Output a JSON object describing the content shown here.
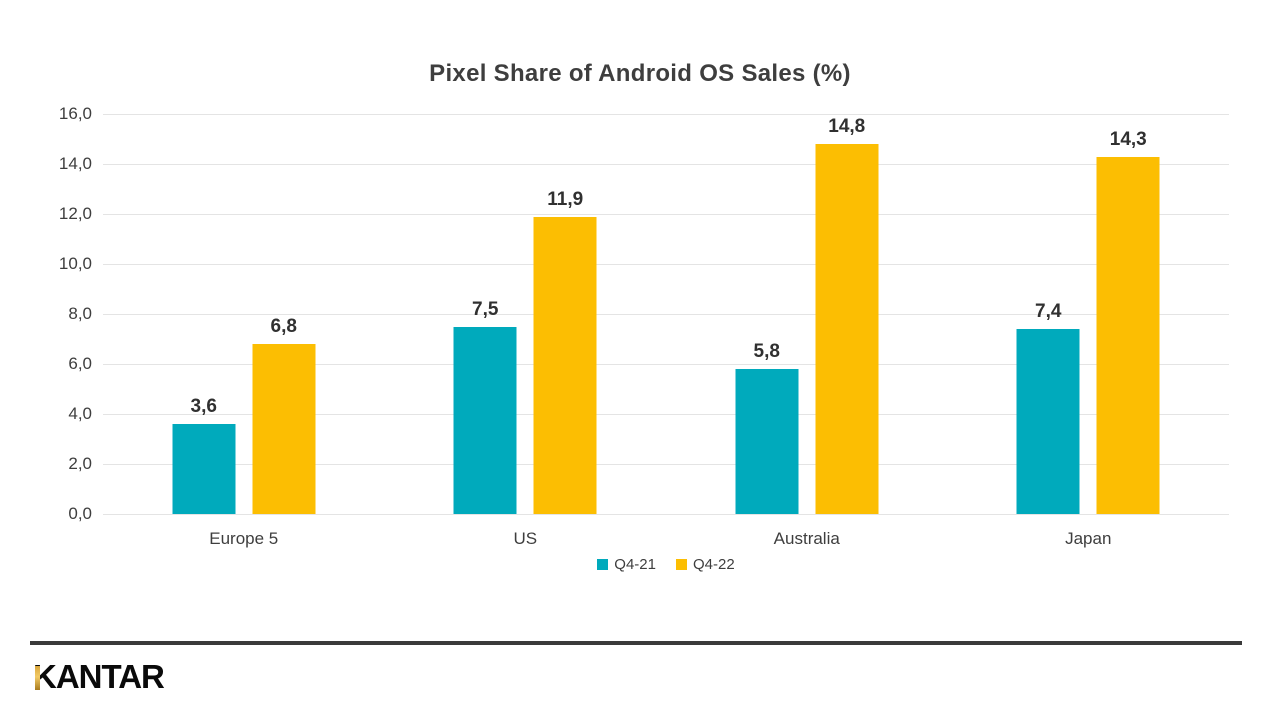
{
  "title": "Pixel Share of Android OS Sales (%)",
  "footer": {
    "logo_text": "KANTAR",
    "divider_color": "#3A3A3A",
    "logo_gold": "#E2A63D"
  },
  "chart_data": {
    "type": "bar",
    "title": "Pixel Share of Android OS Sales (%)",
    "categories": [
      "Europe 5",
      "US",
      "Australia",
      "Japan"
    ],
    "series": [
      {
        "name": "Q4-21",
        "color": "#00AABC",
        "values": [
          3.6,
          7.5,
          5.8,
          7.4
        ],
        "value_labels": [
          "3,6",
          "7,5",
          "5,8",
          "7,4"
        ]
      },
      {
        "name": "Q4-22",
        "color": "#FCBE02",
        "values": [
          6.8,
          11.9,
          14.8,
          14.3
        ],
        "value_labels": [
          "6,8",
          "11,9",
          "14,8",
          "14,3"
        ]
      }
    ],
    "xlabel": "",
    "ylabel": "",
    "ylim": [
      0,
      16
    ],
    "ytick_labels": [
      "0,0",
      "2,0",
      "4,0",
      "6,0",
      "8,0",
      "10,0",
      "12,0",
      "14,0",
      "16,0"
    ],
    "grid": true,
    "gridline_color": "#E4E4E4",
    "axis_text_color": "#3E3E3E",
    "legend_position": "bottom"
  }
}
